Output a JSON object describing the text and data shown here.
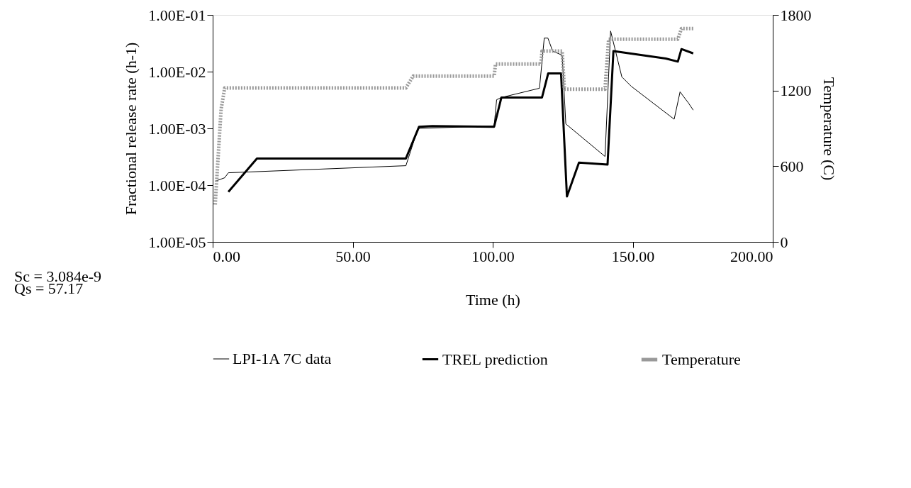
{
  "chart_data": {
    "type": "line",
    "xlabel": "Time (h)",
    "ylabel": "Fractional release rate (h-1)",
    "y2label": "Temperature (C)",
    "annotations": [
      "Sc = 3.084e-9",
      "Qs = 57.17"
    ],
    "log": "y",
    "grid": false,
    "legend": "bottom",
    "marker": "none",
    "xlim": [
      0,
      200
    ],
    "xticks": [
      {
        "value": 0,
        "label": "0.00"
      },
      {
        "value": 50,
        "label": "50.00"
      },
      {
        "value": 100,
        "label": "100.00"
      },
      {
        "value": 150,
        "label": "150.00"
      },
      {
        "value": 200,
        "label": "200.00"
      }
    ],
    "ylim": [
      1e-05,
      0.1
    ],
    "yticks": [
      {
        "value": 1e-05,
        "label": "1.00E-05"
      },
      {
        "value": 0.0001,
        "label": "1.00E-04"
      },
      {
        "value": 0.001,
        "label": "1.00E-03"
      },
      {
        "value": 0.01,
        "label": "1.00E-02"
      },
      {
        "value": 0.1,
        "label": "1.00E-01"
      }
    ],
    "y2lim": [
      0,
      1800
    ],
    "y2ticks": [
      0,
      600,
      {
        "value": 1200,
        "label": "1200"
      },
      {
        "value": 1800,
        "label": "1800"
      }
    ],
    "series": [
      {
        "name": "LPI-1A 7C data",
        "color": "#000000",
        "line_style": "solid",
        "x": [
          0.9,
          4.3,
          5.6,
          69.0,
          73.3,
          92.9,
          100.5,
          101.4,
          103.1,
          116.7,
          118.4,
          119.7,
          121.4,
          124.8,
          126.1,
          140.1,
          142.1,
          146.1,
          149.5,
          164.8,
          166.9,
          169.9,
          171.6
        ],
        "values": [
          0.000117,
          0.000135,
          0.000165,
          0.00022,
          0.001,
          0.00107,
          0.0011,
          0.0032,
          0.0035,
          0.0051,
          0.039,
          0.039,
          0.023,
          0.0195,
          0.0012,
          0.00032,
          0.052,
          0.0081,
          0.0055,
          0.00145,
          0.0044,
          0.0028,
          0.0021
        ]
      },
      {
        "name": "TREL prediction",
        "color": "#000000",
        "line_style": "solid",
        "x": [
          5.6,
          15.8,
          69.0,
          73.7,
          78.4,
          100.5,
          103.1,
          117.6,
          119.8,
          124.4,
          126.5,
          130.8,
          141.0,
          143.1,
          161.8,
          166.1,
          167.4,
          171.6
        ],
        "values": [
          7.6e-05,
          0.000295,
          0.000295,
          0.00107,
          0.0011,
          0.00107,
          0.0035,
          0.0035,
          0.0093,
          0.0093,
          6.3e-05,
          0.00025,
          0.00023,
          0.023,
          0.017,
          0.015,
          0.025,
          0.021
        ]
      },
      {
        "name": "Temperature",
        "color": "#999999",
        "line_style": "dotted",
        "axis": "y2",
        "x": [
          0.9,
          3.0,
          4.3,
          69.0,
          71.6,
          100.5,
          101.0,
          117.2,
          117.6,
          124.8,
          125.6,
          140.1,
          141.4,
          166.1,
          167.4,
          172.0
        ],
        "values": [
          296,
          1051,
          1221,
          1221,
          1315,
          1315,
          1410,
          1410,
          1513,
          1513,
          1211,
          1211,
          1607,
          1607,
          1692,
          1692
        ]
      }
    ]
  }
}
